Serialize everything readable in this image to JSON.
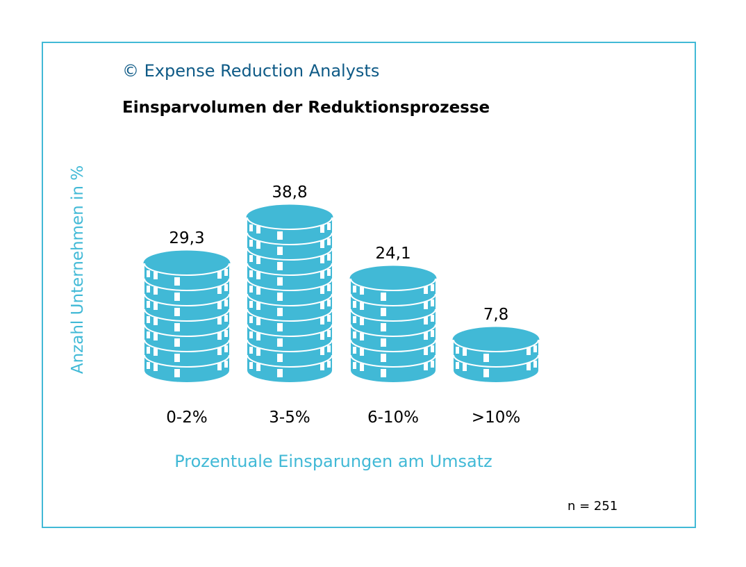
{
  "copyright": "© Expense Reduction Analysts",
  "note": "n = 251",
  "colors": {
    "coin": "#41b9d6",
    "copyright": "#0e5a86",
    "frame": "#41b9d6"
  },
  "chart_data": {
    "type": "bar",
    "title": "Einsparvolumen der Reduktionsprozesse",
    "xlabel": "Prozentuale Einsparungen am Umsatz",
    "ylabel": "Anzahl Unternehmen in %",
    "categories": [
      "0-2%",
      "3-5%",
      "6-10%",
      ">10%"
    ],
    "values": [
      29.3,
      38.8,
      24.1,
      7.8
    ],
    "value_labels": [
      "29,3",
      "38,8",
      "24,1",
      "7,8"
    ]
  }
}
